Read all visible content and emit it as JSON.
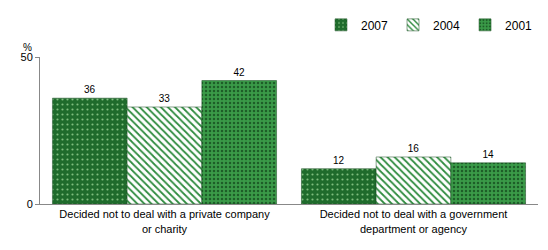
{
  "chart_data": {
    "type": "bar",
    "y_label": "%",
    "categories": [
      "Decided not to deal with a private company or charity",
      "Decided not to deal with a government department or agency"
    ],
    "series": [
      {
        "name": "2007",
        "color": "#1f6b2c",
        "values": [
          36,
          12
        ]
      },
      {
        "name": "2004",
        "color": "#2e8b3e",
        "values": [
          33,
          16
        ]
      },
      {
        "name": "2001",
        "color": "#3a9a48",
        "values": [
          42,
          14
        ]
      }
    ],
    "ylim": [
      0,
      50
    ],
    "yticks": [
      0,
      50
    ],
    "grid": false,
    "legend": "top right",
    "data_labels": true
  }
}
